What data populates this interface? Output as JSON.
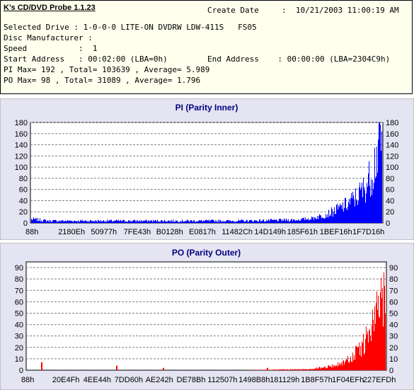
{
  "header": {
    "app_title": "K's CD/DVD Probe 1.1.23",
    "create_date_label": "Create Date",
    "create_date_value": ":  10/21/2003 11:00:19 AM",
    "selected_drive": "Selected Drive : 1-0-0-0 LITE-ON DVDRW LDW-411S   FS05",
    "disc_manufacturer": "Disc Manufacturer :",
    "speed": "Speed           :  1",
    "start_address": "Start Address   : 00:02:00 (LBA=0h)",
    "end_address": "End Address    : 00:00:00 (LBA=2304C9h)",
    "pi_summary": "PI Max= 192 , Total= 103639 , Average= 5.989",
    "po_summary": "PO Max= 98 , Total= 31089 , Average= 1.796"
  },
  "chart_data": [
    {
      "type": "bar",
      "title": "PI (Parity Inner)",
      "color": "#0000ff",
      "ylim": [
        0,
        180
      ],
      "yticks": [
        0,
        20,
        40,
        60,
        80,
        100,
        120,
        140,
        160,
        180
      ],
      "xtick_labels": [
        "88h",
        "2180Eh",
        "50977h",
        "7FE43h",
        "B0128h",
        "E0817h",
        "11482Ch",
        "14D149h",
        "185F61h",
        "1BEF16h",
        "1F7D16h"
      ],
      "grid": true,
      "profile": [
        [
          0.0,
          7
        ],
        [
          0.05,
          4
        ],
        [
          0.1,
          4
        ],
        [
          0.2,
          4
        ],
        [
          0.3,
          4
        ],
        [
          0.4,
          4
        ],
        [
          0.5,
          4
        ],
        [
          0.6,
          4
        ],
        [
          0.7,
          5
        ],
        [
          0.75,
          6
        ],
        [
          0.8,
          10
        ],
        [
          0.84,
          18
        ],
        [
          0.87,
          28
        ],
        [
          0.9,
          40
        ],
        [
          0.93,
          58
        ],
        [
          0.95,
          75
        ],
        [
          0.97,
          105
        ],
        [
          0.985,
          150
        ],
        [
          0.995,
          175
        ],
        [
          1.0,
          180
        ]
      ]
    },
    {
      "type": "bar",
      "title": "PO (Parity Outer)",
      "color": "#ff0000",
      "ylim": [
        0,
        95
      ],
      "yticks": [
        0,
        10,
        20,
        30,
        40,
        50,
        60,
        70,
        80,
        90
      ],
      "xtick_labels": [
        "88h",
        "20E4Fh",
        "4EE44h",
        "7DD60h",
        "AE242h",
        "DE78Bh",
        "112507h",
        "1498B8h",
        "181129h",
        "1B8F57h",
        "1F04EFh",
        "227EFDh"
      ],
      "grid": true,
      "profile": [
        [
          0.0,
          0
        ],
        [
          0.6,
          0
        ],
        [
          0.7,
          0.5
        ],
        [
          0.78,
          1
        ],
        [
          0.83,
          3
        ],
        [
          0.87,
          6
        ],
        [
          0.9,
          12
        ],
        [
          0.93,
          22
        ],
        [
          0.955,
          38
        ],
        [
          0.975,
          58
        ],
        [
          0.99,
          80
        ],
        [
          1.0,
          92
        ]
      ],
      "spikes": [
        [
          0.04,
          7
        ],
        [
          0.25,
          4
        ],
        [
          0.38,
          2
        ],
        [
          0.67,
          2
        ]
      ]
    }
  ]
}
